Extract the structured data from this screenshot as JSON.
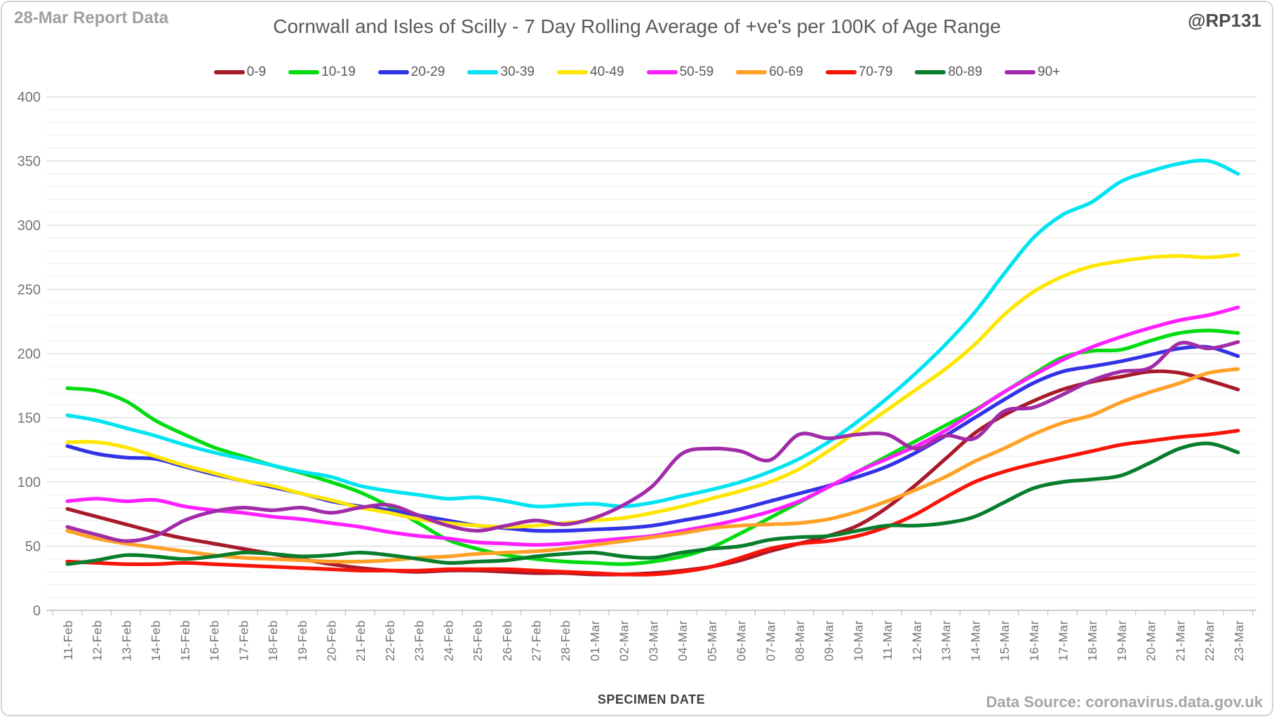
{
  "header": {
    "report_note": "28-Mar Report Data",
    "title": "Cornwall and Isles of Scilly - 7 Day Rolling Average of +ve's per 100K of Age Range",
    "handle": "@RP131"
  },
  "footer": {
    "xaxis_title": "SPECIMEN DATE",
    "data_source": "Data Source: coronavirus.data.gov.uk"
  },
  "chart_data": {
    "type": "line",
    "title": "Cornwall and Isles of Scilly - 7 Day Rolling Average of +ve's per 100K of Age Range",
    "xlabel": "SPECIMEN DATE",
    "ylabel": "",
    "ylim": [
      0,
      400
    ],
    "y_tick_step": 50,
    "y_minor_step": 10,
    "grid": "horizontal",
    "legend_position": "top",
    "x": [
      "11-Feb",
      "12-Feb",
      "13-Feb",
      "14-Feb",
      "15-Feb",
      "16-Feb",
      "17-Feb",
      "18-Feb",
      "19-Feb",
      "20-Feb",
      "21-Feb",
      "22-Feb",
      "23-Feb",
      "24-Feb",
      "25-Feb",
      "26-Feb",
      "27-Feb",
      "28-Feb",
      "01-Mar",
      "02-Mar",
      "03-Mar",
      "04-Mar",
      "05-Mar",
      "06-Mar",
      "07-Mar",
      "08-Mar",
      "09-Mar",
      "10-Mar",
      "11-Mar",
      "12-Mar",
      "13-Mar",
      "14-Mar",
      "15-Mar",
      "16-Mar",
      "17-Mar",
      "18-Mar",
      "19-Mar",
      "20-Mar",
      "21-Mar",
      "22-Mar",
      "23-Mar"
    ],
    "series": [
      {
        "name": "0-9",
        "color": "#A81A2B",
        "values": [
          79,
          73,
          67,
          61,
          56,
          52,
          48,
          44,
          40,
          36,
          33,
          31,
          30,
          31,
          31,
          30,
          29,
          29,
          28,
          28,
          29,
          31,
          34,
          39,
          46,
          52,
          58,
          66,
          80,
          98,
          118,
          138,
          152,
          163,
          172,
          178,
          182,
          186,
          185,
          179,
          172
        ]
      },
      {
        "name": "10-19",
        "color": "#00DC10",
        "values": [
          173,
          171,
          163,
          148,
          137,
          127,
          120,
          113,
          107,
          100,
          92,
          81,
          68,
          55,
          48,
          43,
          40,
          38,
          37,
          36,
          38,
          42,
          49,
          60,
          72,
          84,
          96,
          108,
          120,
          132,
          144,
          156,
          170,
          184,
          197,
          202,
          203,
          210,
          216,
          218,
          216
        ]
      },
      {
        "name": "20-29",
        "color": "#3333E6",
        "values": [
          128,
          122,
          119,
          118,
          112,
          106,
          101,
          96,
          91,
          85,
          81,
          78,
          74,
          70,
          66,
          64,
          62,
          62,
          63,
          64,
          66,
          70,
          74,
          79,
          85,
          91,
          97,
          104,
          112,
          123,
          136,
          150,
          164,
          177,
          186,
          190,
          194,
          199,
          204,
          205,
          198
        ]
      },
      {
        "name": "30-39",
        "color": "#00E4F2",
        "values": [
          152,
          148,
          142,
          136,
          129,
          123,
          118,
          113,
          108,
          104,
          97,
          93,
          90,
          87,
          88,
          85,
          81,
          82,
          83,
          81,
          84,
          89,
          94,
          100,
          108,
          118,
          131,
          147,
          165,
          185,
          207,
          232,
          262,
          290,
          308,
          318,
          334,
          342,
          348,
          350,
          340
        ]
      },
      {
        "name": "40-49",
        "color": "#FFE600",
        "values": [
          131,
          131,
          127,
          120,
          113,
          107,
          101,
          97,
          91,
          86,
          80,
          76,
          71,
          68,
          66,
          65,
          66,
          68,
          70,
          72,
          76,
          81,
          87,
          93,
          100,
          110,
          124,
          140,
          156,
          172,
          188,
          207,
          230,
          248,
          260,
          268,
          272,
          275,
          276,
          275,
          277
        ]
      },
      {
        "name": "50-59",
        "color": "#FF1FFF",
        "values": [
          85,
          87,
          85,
          86,
          81,
          78,
          76,
          73,
          71,
          68,
          65,
          61,
          58,
          56,
          53,
          52,
          51,
          52,
          54,
          56,
          58,
          62,
          66,
          71,
          77,
          85,
          96,
          108,
          118,
          128,
          140,
          155,
          170,
          183,
          195,
          205,
          213,
          220,
          226,
          230,
          236
        ]
      },
      {
        "name": "60-69",
        "color": "#FFA126",
        "values": [
          62,
          56,
          52,
          49,
          46,
          43,
          41,
          40,
          39,
          38,
          38,
          39,
          41,
          42,
          44,
          45,
          46,
          48,
          51,
          54,
          57,
          60,
          64,
          66,
          67,
          68,
          71,
          77,
          85,
          94,
          104,
          116,
          126,
          137,
          146,
          152,
          162,
          170,
          177,
          185,
          188
        ]
      },
      {
        "name": "70-79",
        "color": "#F81408",
        "values": [
          38,
          37,
          36,
          36,
          37,
          36,
          35,
          34,
          33,
          32,
          31,
          31,
          31,
          32,
          32,
          32,
          31,
          30,
          29,
          28,
          28,
          30,
          34,
          41,
          48,
          52,
          54,
          58,
          65,
          75,
          88,
          100,
          108,
          114,
          119,
          124,
          129,
          132,
          135,
          137,
          140
        ]
      },
      {
        "name": "80-89",
        "color": "#087D2C",
        "values": [
          36,
          39,
          43,
          42,
          40,
          42,
          45,
          44,
          42,
          43,
          45,
          43,
          40,
          37,
          38,
          39,
          42,
          44,
          45,
          42,
          41,
          45,
          48,
          50,
          55,
          57,
          58,
          62,
          66,
          66,
          68,
          73,
          84,
          95,
          100,
          102,
          105,
          115,
          126,
          130,
          123
        ]
      },
      {
        "name": "90+",
        "color": "#A12BA8",
        "values": [
          65,
          59,
          54,
          58,
          70,
          77,
          80,
          78,
          80,
          76,
          80,
          82,
          74,
          66,
          62,
          66,
          70,
          67,
          72,
          82,
          97,
          122,
          126,
          124,
          117,
          137,
          134,
          137,
          137,
          126,
          136,
          134,
          155,
          158,
          168,
          179,
          186,
          189,
          208,
          204,
          209
        ]
      }
    ]
  }
}
